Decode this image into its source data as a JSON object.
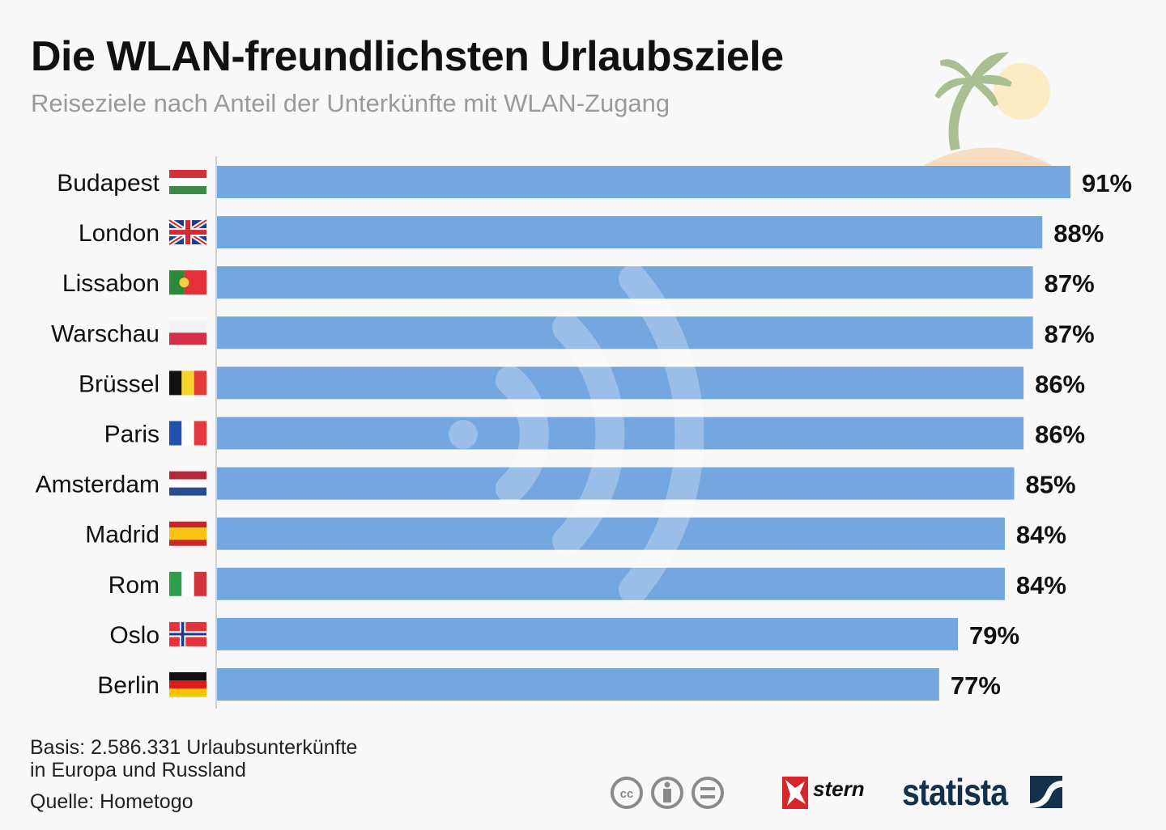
{
  "title": "Die WLAN-freundlichsten Urlaubsziele",
  "subtitle": "Reiseziele nach Anteil der Unterkünfte mit WLAN-Zugang",
  "chart_data": {
    "type": "bar",
    "orientation": "horizontal",
    "categories": [
      "Budapest",
      "London",
      "Lissabon",
      "Warschau",
      "Brüssel",
      "Paris",
      "Amsterdam",
      "Madrid",
      "Rom",
      "Oslo",
      "Berlin"
    ],
    "values": [
      91,
      88,
      87,
      87,
      86,
      86,
      85,
      84,
      84,
      79,
      77
    ],
    "labels": [
      "91%",
      "88%",
      "87%",
      "87%",
      "86%",
      "86%",
      "85%",
      "84%",
      "84%",
      "79%",
      "77%"
    ],
    "flags": [
      "hungary-flag",
      "uk-flag",
      "portugal-flag",
      "poland-flag",
      "belgium-flag",
      "france-flag",
      "netherlands-flag",
      "spain-flag",
      "italy-flag",
      "norway-flag",
      "germany-flag"
    ],
    "xlim": [
      0,
      100
    ],
    "unit": "%",
    "bar_color": "#74a6e0",
    "title": "Die WLAN-freundlichsten Urlaubsziele",
    "xlabel": "",
    "ylabel": ""
  },
  "footer": {
    "basis_line1": "Basis: 2.586.331 Urlaubsunterkünfte",
    "basis_line2": "in Europa und Russland",
    "source": "Quelle: Hometogo",
    "stern": "stern",
    "statista": "statista"
  }
}
